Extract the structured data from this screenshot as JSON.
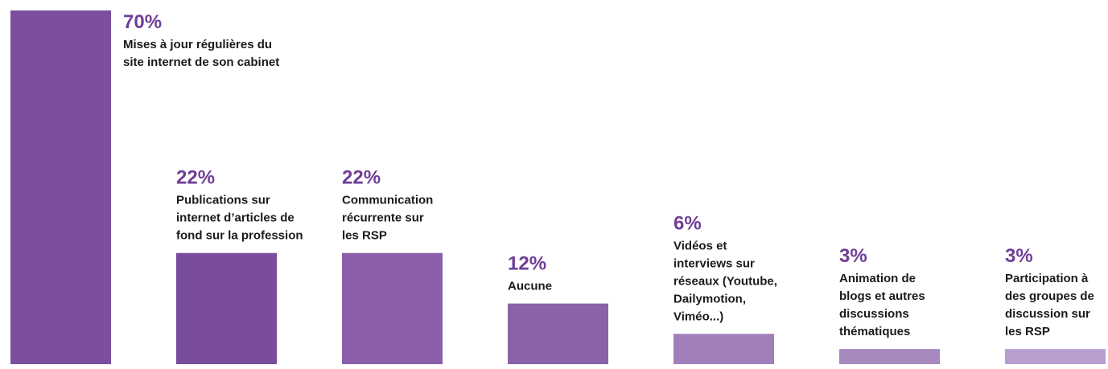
{
  "chart_data": {
    "type": "bar",
    "categories": [
      [
        "Mises à jour régulières du",
        "site internet de son cabinet"
      ],
      [
        "Publications sur",
        "internet d’articles de",
        "fond sur la profession"
      ],
      [
        "Communication",
        "récurrente sur",
        "les RSP"
      ],
      [
        "Aucune"
      ],
      [
        "Vidéos et",
        "interviews sur",
        "réseaux (Youtube,",
        "Dailymotion,",
        "Viméo...)"
      ],
      [
        "Animation de",
        "blogs et autres",
        "discussions",
        "thématiques"
      ],
      [
        "Participation à",
        "des groupes de",
        "discussion sur",
        "les RSP"
      ]
    ],
    "values": [
      70,
      22,
      22,
      12,
      6,
      3,
      3
    ],
    "value_labels": [
      "70%",
      "22%",
      "22%",
      "12%",
      "6%",
      "3%",
      "3%"
    ],
    "colors": [
      "#7b4f9e",
      "#7a4c9c",
      "#8a5ea8",
      "#8a62a8",
      "#a07fba",
      "#a68abf",
      "#b79ecf"
    ],
    "ylim": [
      0,
      70
    ]
  }
}
